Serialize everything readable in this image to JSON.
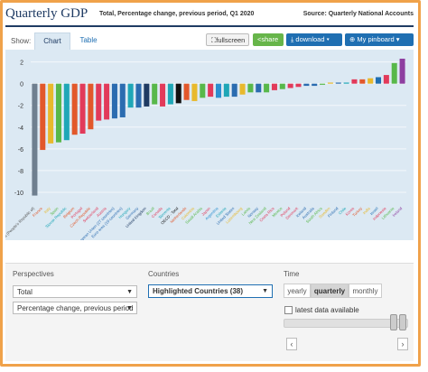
{
  "header": {
    "title": "Quarterly GDP",
    "subtitle": "Total, Percentage change, previous period, Q1 2020",
    "source": "Source: Quarterly National Accounts"
  },
  "toolbar": {
    "show_label": "Show:",
    "tab_chart": "Chart",
    "tab_table": "Table",
    "fullscreen": "fullscreen",
    "share": "share",
    "download": "download",
    "pinboard": "My pinboard"
  },
  "perspectives": {
    "label": "Perspectives",
    "measure": "Total",
    "unit": "Percentage change, previous period"
  },
  "countries": {
    "label": "Countries",
    "selected": "Highlighted Countries (38)"
  },
  "time": {
    "label": "Time",
    "options": [
      "yearly",
      "quarterly",
      "monthly"
    ],
    "selected": "quarterly",
    "latest_label": "latest data available"
  },
  "colors": {
    "frame": "#f0a24a",
    "title": "#1f3b63",
    "plot_bg": "#dce9f3",
    "gray_bar": "#6f7f8f",
    "share": "#67b54a",
    "blue_button": "#1f6fb2"
  },
  "chart_data": {
    "type": "bar",
    "title": "Quarterly GDP",
    "subtitle": "Total, Percentage change, previous period, Q1 2020",
    "ylim": [
      -11,
      2.8
    ],
    "yticks": [
      2,
      0,
      -2,
      -4,
      -6,
      -8,
      -10
    ],
    "grid": true,
    "categories": [
      "China (People's Republic of)",
      "France",
      "Italy",
      "Spain",
      "Slovak Republic",
      "Belgium",
      "Portugal",
      "Czech Republic",
      "Switzerland",
      "Austria",
      "European Union (27 countries)",
      "Euro area (19 countries)",
      "Hungary",
      "Germany",
      "United Kingdom",
      "Brazil",
      "Canada",
      "Slovenia",
      "OECD - Total",
      "Netherlands",
      "Colombia",
      "Saudi Arabia",
      "Japan",
      "Argentina",
      "Estonia",
      "United States",
      "Luxembourg",
      "Latvia",
      "Norway",
      "New Zealand",
      "Costa Rica",
      "Mexico",
      "Poland",
      "Denmark",
      "Iceland",
      "Australia",
      "South Africa",
      "Sweden",
      "Finland",
      "Chile",
      "Korea",
      "Turkey",
      "India",
      "Israel",
      "Indonesia",
      "Lithuania",
      "Ireland"
    ],
    "values": [
      -10.3,
      -6.1,
      -5.5,
      -5.4,
      -5.2,
      -4.7,
      -4.6,
      -4.2,
      -3.4,
      -3.3,
      -3.2,
      -3.1,
      -2.2,
      -2.2,
      -2.1,
      -1.9,
      -2.1,
      -1.9,
      -1.8,
      -1.5,
      -1.6,
      -1.3,
      -1.2,
      -1.3,
      -1.2,
      -1.2,
      -1.0,
      -0.8,
      -0.8,
      -0.8,
      -0.6,
      -0.5,
      -0.4,
      -0.3,
      -0.2,
      -0.2,
      -0.1,
      0.1,
      0.1,
      0.1,
      0.4,
      0.4,
      0.5,
      0.6,
      0.8,
      1.9,
      2.3
    ],
    "colors": [
      "#6f7f8f",
      "#e2582b",
      "#e8b92c",
      "#58b84a",
      "#1fa7b7",
      "#e2582b",
      "#e23a5a",
      "#e2582b",
      "#e23a5a",
      "#e23a5a",
      "#2b6cb0",
      "#2b6cb0",
      "#1fa7b7",
      "#2b6cb0",
      "#1f3b63",
      "#58b84a",
      "#e23a5a",
      "#1fa7b7",
      "#111111",
      "#e2582b",
      "#e8b92c",
      "#58b84a",
      "#e23a5a",
      "#2b8fd0",
      "#1fa7b7",
      "#2b6cb0",
      "#e8b92c",
      "#58b84a",
      "#2b6cb0",
      "#58b84a",
      "#e23a5a",
      "#58b84a",
      "#e23a5a",
      "#e23a5a",
      "#2b6cb0",
      "#2b6cb0",
      "#58b84a",
      "#e8b92c",
      "#2b6cb0",
      "#1fa7b7",
      "#e23a5a",
      "#e2582b",
      "#e8b92c",
      "#1f6fb2",
      "#e23a5a",
      "#58b84a",
      "#8e3fa0"
    ]
  }
}
